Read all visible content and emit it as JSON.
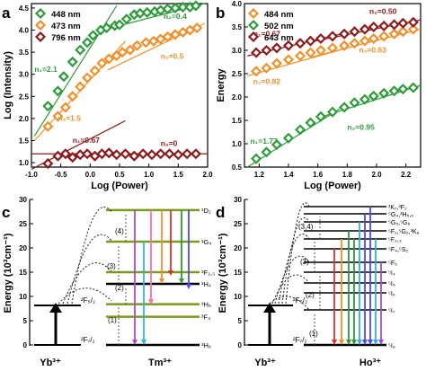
{
  "panels": [
    {
      "letter": "a"
    },
    {
      "letter": "b"
    },
    {
      "letter": "c"
    },
    {
      "letter": "d"
    }
  ],
  "chart_data": [
    {
      "panel": "a",
      "type": "scatter",
      "xlabel": "Log (Power)",
      "ylabel": "Log (Intensity)",
      "xlim": [
        -1.0,
        2.0
      ],
      "ylim": [
        0.9,
        4.6
      ],
      "xticks": [
        "-1.0",
        "-0.5",
        "0.0",
        "0.5",
        "1.0",
        "1.5",
        "2.0"
      ],
      "yticks": [
        "1.0",
        "1.5",
        "2.0",
        "2.5",
        "3.0",
        "3.5",
        "4.0",
        "4.5"
      ],
      "xtick_values": [
        -1.0,
        -0.5,
        0.0,
        0.5,
        1.0,
        1.5,
        2.0
      ],
      "ytick_values": [
        1.0,
        1.5,
        2.0,
        2.5,
        3.0,
        3.5,
        4.0,
        4.5
      ],
      "legend": "top-left",
      "series": [
        {
          "name": "448 nm",
          "color": "#2e9a3a",
          "x": [
            -0.72,
            -0.55,
            -0.45,
            -0.3,
            -0.17,
            -0.05,
            0.05,
            0.18,
            0.28,
            0.42,
            0.5,
            0.62,
            0.75,
            0.85,
            0.97,
            1.1,
            1.2,
            1.32,
            1.45,
            1.58,
            1.7,
            1.8
          ],
          "y": [
            2.28,
            2.62,
            2.95,
            3.28,
            3.55,
            3.72,
            3.88,
            4.0,
            4.05,
            4.1,
            4.12,
            4.25,
            4.35,
            4.38,
            4.4,
            4.42,
            4.45,
            4.48,
            4.5,
            4.52,
            4.52,
            4.55
          ]
        },
        {
          "name": "473 nm",
          "color": "#f0902a",
          "x": [
            -0.72,
            -0.55,
            -0.42,
            -0.3,
            -0.17,
            -0.05,
            0.08,
            0.2,
            0.32,
            0.45,
            0.55,
            0.68,
            0.8,
            0.95,
            1.08,
            1.2,
            1.32,
            1.45,
            1.58,
            1.7,
            1.82
          ],
          "y": [
            1.82,
            2.05,
            2.25,
            2.5,
            2.72,
            2.92,
            3.08,
            3.25,
            3.35,
            3.42,
            3.5,
            3.55,
            3.65,
            3.72,
            3.75,
            3.8,
            3.85,
            3.9,
            3.95,
            4.0,
            4.05
          ]
        },
        {
          "name": "796 nm",
          "color": "#8b1a1a",
          "x": [
            -0.72,
            -0.55,
            -0.42,
            -0.3,
            -0.17,
            -0.05,
            0.08,
            0.2,
            0.32,
            0.45,
            0.6,
            0.75,
            0.9,
            1.05,
            1.2,
            1.35,
            1.5,
            1.65,
            1.8
          ],
          "y": [
            0.98,
            1.15,
            1.2,
            1.12,
            1.18,
            1.2,
            1.15,
            1.2,
            1.22,
            1.18,
            1.2,
            1.15,
            1.2,
            1.18,
            1.2,
            1.2,
            1.18,
            1.2,
            1.2
          ]
        }
      ],
      "fits": [
        {
          "color": "#2e9a3a",
          "x": [
            -0.95,
            0.45
          ],
          "y": [
            1.6,
            4.55
          ]
        },
        {
          "color": "#2e9a3a",
          "x": [
            0.35,
            1.95
          ],
          "y": [
            4.05,
            4.6
          ]
        },
        {
          "color": "#f0902a",
          "x": [
            -0.95,
            0.6
          ],
          "y": [
            1.5,
            3.75
          ]
        },
        {
          "color": "#f0902a",
          "x": [
            0.3,
            1.95
          ],
          "y": [
            3.1,
            4.15
          ]
        },
        {
          "color": "#8b1a1a",
          "x": [
            -1.0,
            0.6
          ],
          "y": [
            0.85,
            1.95
          ]
        },
        {
          "color": "#8b1a1a",
          "x": [
            -1.0,
            2.0
          ],
          "y": [
            1.2,
            1.2
          ]
        }
      ],
      "annotations": [
        {
          "text": "n₂=0.4",
          "color": "#2e9a3a",
          "x": 1.25,
          "y": 4.25
        },
        {
          "text": "n₂=0.5",
          "color": "#f0902a",
          "x": 1.2,
          "y": 3.35
        },
        {
          "text": "n₁=2.1",
          "color": "#2e9a3a",
          "x": -0.95,
          "y": 3.05
        },
        {
          "text": "n₁=1.5",
          "color": "#f0902a",
          "x": -0.55,
          "y": 1.95
        },
        {
          "text": "n₁=0.67",
          "color": "#8b1a1a",
          "x": -0.3,
          "y": 1.45
        },
        {
          "text": "n₂=0",
          "color": "#8b1a1a",
          "x": 1.2,
          "y": 1.38
        }
      ]
    },
    {
      "panel": "b",
      "type": "scatter",
      "xlabel": "Log (Power)",
      "ylabel": "Energy",
      "xlim": [
        1.1,
        2.3
      ],
      "ylim": [
        0.5,
        4.0
      ],
      "xticks": [
        "1.2",
        "1.4",
        "1.6",
        "1.8",
        "2.0",
        "2.2"
      ],
      "yticks": [
        "0.5",
        "1.0",
        "1.5",
        "2.0",
        "2.5",
        "3.0",
        "3.5",
        "4.0"
      ],
      "xtick_values": [
        1.2,
        1.4,
        1.6,
        1.8,
        2.0,
        2.2
      ],
      "ytick_values": [
        0.5,
        1.0,
        1.5,
        2.0,
        2.5,
        3.0,
        3.5,
        4.0
      ],
      "legend": "top-left",
      "series": [
        {
          "name": "484 nm",
          "color": "#f0902a",
          "x": [
            1.18,
            1.25,
            1.32,
            1.4,
            1.48,
            1.55,
            1.62,
            1.7,
            1.78,
            1.85,
            1.92,
            1.98,
            2.05,
            2.12,
            2.18,
            2.25
          ],
          "y": [
            2.55,
            2.62,
            2.72,
            2.8,
            2.88,
            2.95,
            3.0,
            3.05,
            3.1,
            3.15,
            3.2,
            3.25,
            3.3,
            3.35,
            3.4,
            3.45
          ]
        },
        {
          "name": "502 nm",
          "color": "#2e9a3a",
          "x": [
            1.18,
            1.25,
            1.32,
            1.4,
            1.48,
            1.55,
            1.62,
            1.7,
            1.78,
            1.85,
            1.92,
            1.98,
            2.05,
            2.12,
            2.18,
            2.25
          ],
          "y": [
            0.68,
            0.82,
            0.98,
            1.12,
            1.3,
            1.45,
            1.58,
            1.68,
            1.78,
            1.88,
            1.95,
            2.02,
            2.08,
            2.13,
            2.17,
            2.2
          ]
        },
        {
          "name": "643 nm",
          "color": "#8b1a1a",
          "x": [
            1.18,
            1.25,
            1.32,
            1.4,
            1.48,
            1.55,
            1.62,
            1.7,
            1.78,
            1.85,
            1.92,
            1.98,
            2.05,
            2.12,
            2.18,
            2.25
          ],
          "y": [
            2.95,
            3.0,
            3.05,
            3.1,
            3.15,
            3.2,
            3.25,
            3.3,
            3.35,
            3.4,
            3.45,
            3.5,
            3.52,
            3.55,
            3.58,
            3.6
          ]
        }
      ],
      "fits": [
        {
          "color": "#2e9a3a",
          "x": [
            1.12,
            1.75
          ],
          "y": [
            0.5,
            1.75
          ]
        },
        {
          "color": "#2e9a3a",
          "x": [
            1.6,
            2.3
          ],
          "y": [
            1.55,
            2.25
          ]
        },
        {
          "color": "#f0902a",
          "x": [
            1.12,
            1.8
          ],
          "y": [
            2.45,
            3.05
          ]
        },
        {
          "color": "#f0902a",
          "x": [
            1.55,
            2.3
          ],
          "y": [
            2.85,
            3.45
          ]
        },
        {
          "color": "#8b1a1a",
          "x": [
            1.12,
            1.8
          ],
          "y": [
            2.88,
            3.38
          ]
        },
        {
          "color": "#8b1a1a",
          "x": [
            1.55,
            2.3
          ],
          "y": [
            3.18,
            3.65
          ]
        }
      ],
      "annotations": [
        {
          "text": "n₂=0.50",
          "color": "#8b1a1a",
          "x": 1.95,
          "y": 3.78
        },
        {
          "text": "n₁=0.67",
          "color": "#8b1a1a",
          "x": 1.16,
          "y": 3.3
        },
        {
          "text": "n₂=0.63",
          "color": "#f0902a",
          "x": 1.88,
          "y": 2.95
        },
        {
          "text": "n₁=0.82",
          "color": "#f0902a",
          "x": 1.16,
          "y": 2.28
        },
        {
          "text": "n₂=0.95",
          "color": "#2e9a3a",
          "x": 1.8,
          "y": 1.3
        },
        {
          "text": "n₁=1.77",
          "color": "#2e9a3a",
          "x": 1.14,
          "y": 1.0
        }
      ]
    }
  ],
  "panel_c": {
    "ylabel": "Energy (10³cm⁻¹)",
    "yticks": [
      "0",
      "5",
      "10",
      "15",
      "20",
      "25",
      "30"
    ],
    "donor": "Yb³⁺",
    "acceptor": "Tm³⁺",
    "donor_levels": [
      "²F₅/₂",
      "²F₇/₂"
    ],
    "steps": [
      "(1)",
      "(2)",
      "(3)",
      "(4)"
    ],
    "level_labels": [
      "¹D₂",
      "¹G₄",
      "³F₂,₃",
      "³H₄",
      "³H₅",
      "³F₄",
      "³H₆"
    ],
    "level_energies": [
      27.8,
      21.3,
      15,
      12.6,
      8.4,
      5.8,
      0
    ],
    "emission_colors": [
      "#9b4fd6",
      "#2db2e8",
      "#ff6fae",
      "#f0902a",
      "#e0302a",
      "#2e9a3a",
      "#4a4af0"
    ]
  },
  "panel_d": {
    "ylabel": "Energy (10³cm⁻¹)",
    "yticks": [
      "0",
      "5",
      "10",
      "15",
      "20",
      "25",
      "30"
    ],
    "donor": "Yb³⁺",
    "acceptor": "Ho³⁺",
    "donor_levels": [
      "²F₅/₂",
      "²F₇/₂"
    ],
    "steps": [
      "(1)",
      "(2)",
      "(3)",
      "(3,4)"
    ],
    "level_labels": [
      "³K₇,³F₂",
      "⁵G₄,³H₅,₆",
      "⁵G₅,⁵G₆",
      "⁵F₁,⁵G₆,³K₈",
      "⁵F₂,₃",
      "⁵F₄,⁵S₂",
      "⁵F₅",
      "⁵I₄",
      "⁵I₅",
      "⁵I₆",
      "⁵I₇",
      "⁵I₈"
    ],
    "emission_colors": [
      "#e0302a",
      "#f0902a",
      "#2e9a3a",
      "#2db2e8",
      "#4a4af0",
      "#9b4fd6",
      "#ff6fae"
    ]
  }
}
